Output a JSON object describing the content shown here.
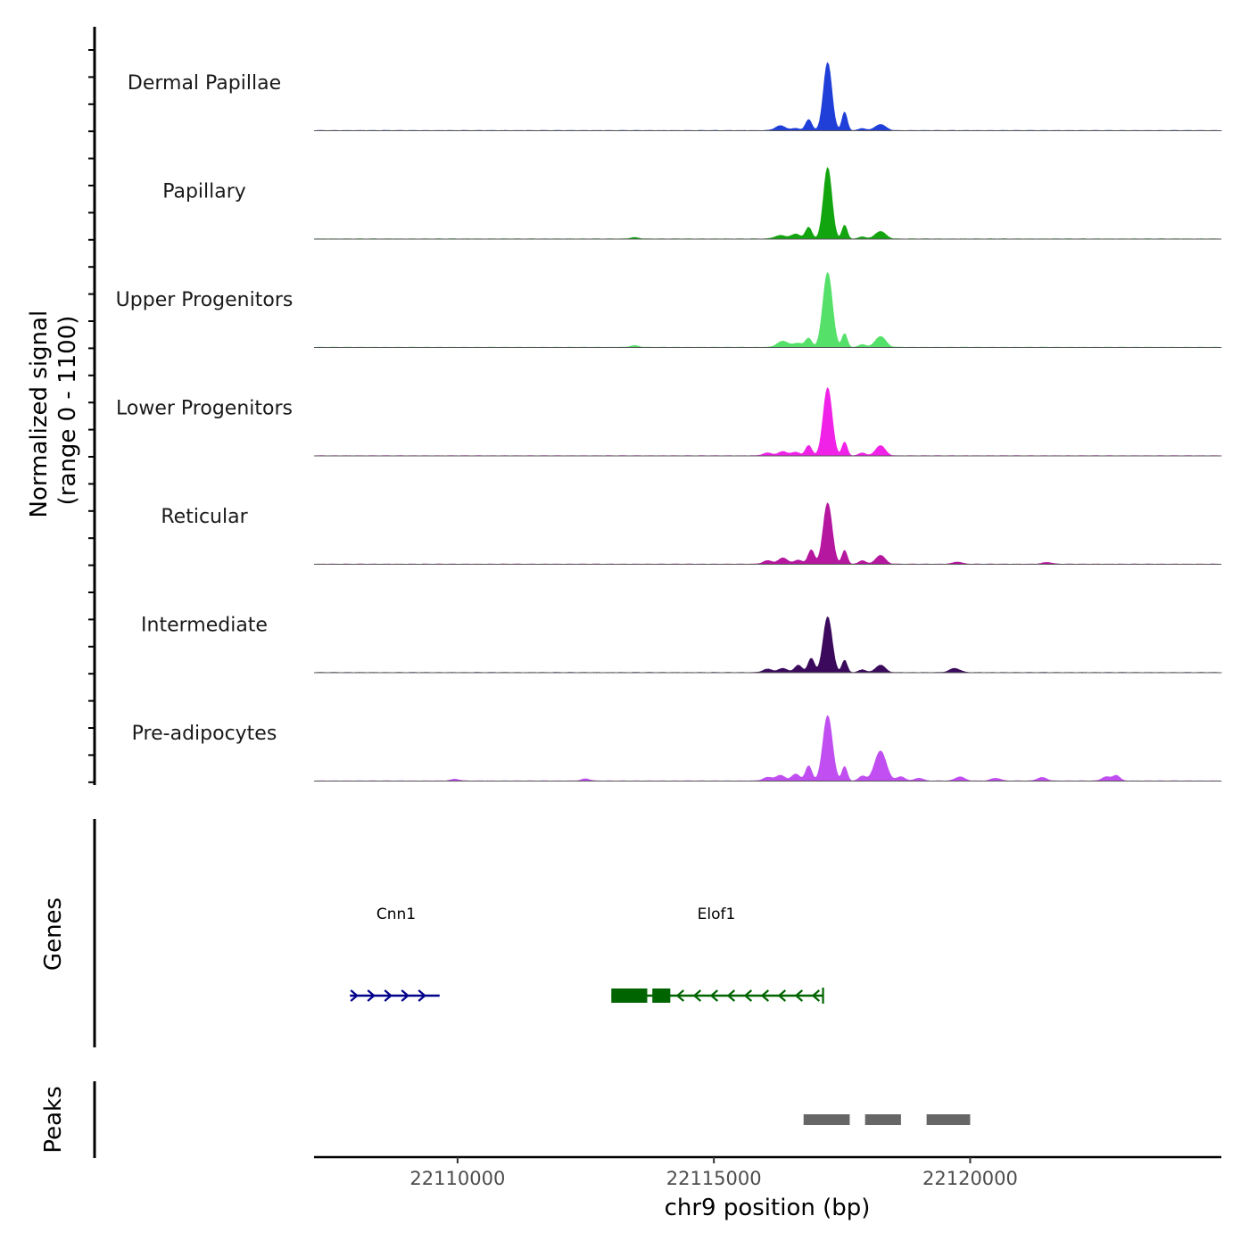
{
  "chart_data": {
    "type": "area",
    "title": "",
    "chromosome": "chr9",
    "xlabel": "chr9 position (bp)",
    "ylabel": "Normalized signal\n(range 0 - 1100)",
    "ylim": [
      0,
      1100
    ],
    "xlim": [
      22107200,
      22124900
    ],
    "x_ticks": [
      22110000,
      22115000,
      22120000
    ],
    "x_tick_labels": [
      "22110000",
      "22115000",
      "22120000"
    ],
    "tracks": [
      {
        "name": "Dermal Papillae",
        "color": "#1f3fd8",
        "peaks": [
          {
            "pos": 22116300,
            "height": 70,
            "width": 100
          },
          {
            "pos": 22116600,
            "height": 30,
            "width": 80
          },
          {
            "pos": 22116850,
            "height": 160,
            "width": 60
          },
          {
            "pos": 22117220,
            "height": 1000,
            "width": 80
          },
          {
            "pos": 22117550,
            "height": 270,
            "width": 50
          },
          {
            "pos": 22117900,
            "height": 30,
            "width": 70
          },
          {
            "pos": 22118250,
            "height": 90,
            "width": 100
          }
        ]
      },
      {
        "name": "Papillary",
        "color": "#12a50f",
        "peaks": [
          {
            "pos": 22116300,
            "height": 50,
            "width": 110
          },
          {
            "pos": 22116600,
            "height": 70,
            "width": 90
          },
          {
            "pos": 22116850,
            "height": 170,
            "width": 60
          },
          {
            "pos": 22117220,
            "height": 1050,
            "width": 80
          },
          {
            "pos": 22117550,
            "height": 200,
            "width": 50
          },
          {
            "pos": 22117900,
            "height": 30,
            "width": 70
          },
          {
            "pos": 22118250,
            "height": 110,
            "width": 100
          },
          {
            "pos": 22113450,
            "height": 20,
            "width": 80
          }
        ]
      },
      {
        "name": "Upper Progenitors",
        "color": "#55e06a",
        "peaks": [
          {
            "pos": 22116350,
            "height": 90,
            "width": 110
          },
          {
            "pos": 22116650,
            "height": 60,
            "width": 90
          },
          {
            "pos": 22116850,
            "height": 130,
            "width": 60
          },
          {
            "pos": 22117220,
            "height": 1100,
            "width": 90
          },
          {
            "pos": 22117550,
            "height": 200,
            "width": 50
          },
          {
            "pos": 22117900,
            "height": 40,
            "width": 70
          },
          {
            "pos": 22118250,
            "height": 160,
            "width": 100
          },
          {
            "pos": 22113450,
            "height": 25,
            "width": 80
          }
        ]
      },
      {
        "name": "Lower Progenitors",
        "color": "#f022e8",
        "peaks": [
          {
            "pos": 22116050,
            "height": 40,
            "width": 90
          },
          {
            "pos": 22116350,
            "height": 60,
            "width": 90
          },
          {
            "pos": 22116600,
            "height": 50,
            "width": 80
          },
          {
            "pos": 22116850,
            "height": 150,
            "width": 60
          },
          {
            "pos": 22117220,
            "height": 1000,
            "width": 85
          },
          {
            "pos": 22117550,
            "height": 200,
            "width": 50
          },
          {
            "pos": 22117900,
            "height": 40,
            "width": 70
          },
          {
            "pos": 22118250,
            "height": 150,
            "width": 90
          }
        ]
      },
      {
        "name": "Reticular",
        "color": "#b5179e",
        "peaks": [
          {
            "pos": 22116050,
            "height": 50,
            "width": 90
          },
          {
            "pos": 22116350,
            "height": 90,
            "width": 90
          },
          {
            "pos": 22116650,
            "height": 60,
            "width": 80
          },
          {
            "pos": 22116900,
            "height": 210,
            "width": 60
          },
          {
            "pos": 22117220,
            "height": 900,
            "width": 85
          },
          {
            "pos": 22117550,
            "height": 200,
            "width": 50
          },
          {
            "pos": 22117900,
            "height": 50,
            "width": 70
          },
          {
            "pos": 22118250,
            "height": 130,
            "width": 90
          },
          {
            "pos": 22119750,
            "height": 30,
            "width": 90
          },
          {
            "pos": 22121500,
            "height": 25,
            "width": 90
          }
        ]
      },
      {
        "name": "Intermediate",
        "color": "#3b0a5c",
        "peaks": [
          {
            "pos": 22116050,
            "height": 50,
            "width": 90
          },
          {
            "pos": 22116350,
            "height": 60,
            "width": 90
          },
          {
            "pos": 22116650,
            "height": 110,
            "width": 70
          },
          {
            "pos": 22116900,
            "height": 210,
            "width": 60
          },
          {
            "pos": 22117220,
            "height": 820,
            "width": 85
          },
          {
            "pos": 22117550,
            "height": 180,
            "width": 50
          },
          {
            "pos": 22117900,
            "height": 40,
            "width": 70
          },
          {
            "pos": 22118250,
            "height": 110,
            "width": 90
          },
          {
            "pos": 22119700,
            "height": 60,
            "width": 100
          }
        ]
      },
      {
        "name": "Pre-adipocytes",
        "color": "#c04ef0",
        "peaks": [
          {
            "pos": 22116050,
            "height": 50,
            "width": 90
          },
          {
            "pos": 22116300,
            "height": 80,
            "width": 90
          },
          {
            "pos": 22116600,
            "height": 100,
            "width": 80
          },
          {
            "pos": 22116850,
            "height": 220,
            "width": 60
          },
          {
            "pos": 22117220,
            "height": 960,
            "width": 90
          },
          {
            "pos": 22117550,
            "height": 210,
            "width": 50
          },
          {
            "pos": 22117900,
            "height": 70,
            "width": 70
          },
          {
            "pos": 22118250,
            "height": 440,
            "width": 110
          },
          {
            "pos": 22118650,
            "height": 60,
            "width": 80
          },
          {
            "pos": 22119000,
            "height": 40,
            "width": 80
          },
          {
            "pos": 22119800,
            "height": 60,
            "width": 90
          },
          {
            "pos": 22120500,
            "height": 40,
            "width": 90
          },
          {
            "pos": 22121400,
            "height": 50,
            "width": 90
          },
          {
            "pos": 22122650,
            "height": 60,
            "width": 80
          },
          {
            "pos": 22122850,
            "height": 80,
            "width": 70
          },
          {
            "pos": 22109950,
            "height": 25,
            "width": 80
          },
          {
            "pos": 22112500,
            "height": 30,
            "width": 80
          }
        ]
      }
    ],
    "genes_title": "Genes",
    "genes": [
      {
        "name": "Cnn1",
        "start": 22107900,
        "end": 22109650,
        "strand": "+",
        "color": "#00008b",
        "exons": []
      },
      {
        "name": "Elof1",
        "start": 22113000,
        "end": 22117130,
        "strand": "-",
        "color": "#006400",
        "exons": [
          [
            22113000,
            22113700
          ],
          [
            22113800,
            22114150
          ]
        ]
      }
    ],
    "peaks_title": "Peaks",
    "peak_regions": [
      [
        22116750,
        22117650
      ],
      [
        22117950,
        22118650
      ],
      [
        22119150,
        22120000
      ]
    ]
  }
}
